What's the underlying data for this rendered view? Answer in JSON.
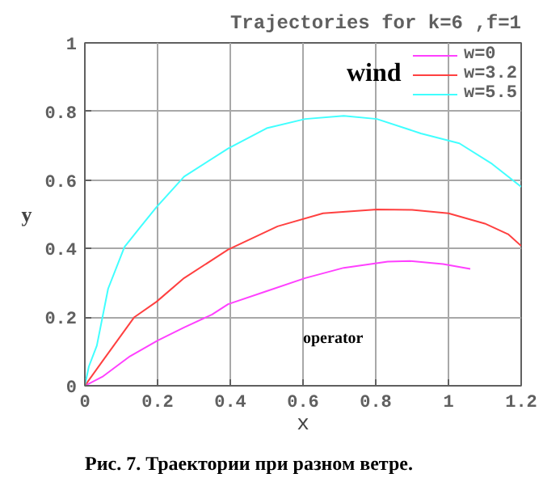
{
  "chart_data": {
    "type": "line",
    "title": "Trajectories for k=6 ,f=1",
    "xlabel": "x",
    "ylabel": "y",
    "xlim": [
      0,
      1.2
    ],
    "ylim": [
      0,
      1
    ],
    "xticks": [
      0,
      0.2,
      0.4,
      0.6,
      0.8,
      1,
      1.2
    ],
    "yticks": [
      0,
      0.2,
      0.4,
      0.6,
      0.8,
      1
    ],
    "grid": true,
    "legend": "top right",
    "annotations": [
      "wind",
      "operator",
      "Рис. 7.   Траектории при разном ветре."
    ],
    "series": [
      {
        "name": "w=0",
        "color": "#ff40ff",
        "x": [
          0,
          0.048,
          0.124,
          0.2,
          0.273,
          0.35,
          0.394,
          0.5,
          0.606,
          0.712,
          0.833,
          0.894,
          0.985,
          1.06
        ],
        "values": [
          0,
          0.026,
          0.086,
          0.132,
          0.17,
          0.208,
          0.238,
          0.276,
          0.314,
          0.344,
          0.362,
          0.364,
          0.355,
          0.341
        ]
      },
      {
        "name": "w=3.2",
        "color": "#ff4040",
        "x": [
          0,
          0.048,
          0.136,
          0.197,
          0.273,
          0.394,
          0.53,
          0.655,
          0.803,
          0.9,
          1.0,
          1.1,
          1.164,
          1.2
        ],
        "values": [
          0,
          0.071,
          0.2,
          0.245,
          0.314,
          0.397,
          0.465,
          0.503,
          0.514,
          0.513,
          0.503,
          0.473,
          0.442,
          0.408
        ]
      },
      {
        "name": "w=5.5",
        "color": "#40ffff",
        "x": [
          0,
          0.011,
          0.033,
          0.064,
          0.109,
          0.152,
          0.197,
          0.273,
          0.394,
          0.5,
          0.606,
          0.712,
          0.803,
          0.924,
          1.03,
          1.12,
          1.2
        ],
        "values": [
          0,
          0.056,
          0.117,
          0.283,
          0.405,
          0.462,
          0.521,
          0.61,
          0.692,
          0.751,
          0.778,
          0.787,
          0.778,
          0.736,
          0.707,
          0.647,
          0.58
        ]
      }
    ]
  }
}
